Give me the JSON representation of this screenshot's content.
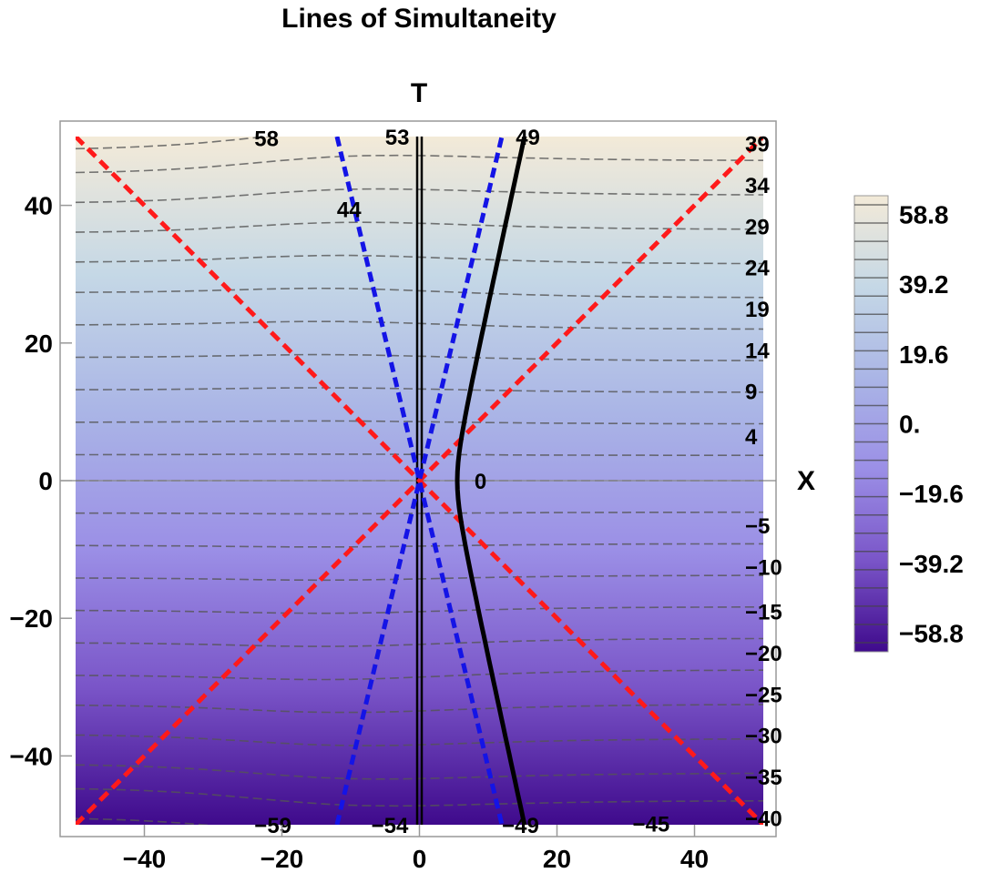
{
  "chart_data": {
    "type": "contour",
    "title": "Lines of Simultaneity",
    "xlabel": "X",
    "ylabel": "T",
    "xlim": [
      -50,
      50
    ],
    "ylim": [
      -50,
      50
    ],
    "x_ticks": [
      "−40",
      "−20",
      "0",
      "20",
      "40"
    ],
    "x_tick_values": [
      -40,
      -20,
      0,
      20,
      40
    ],
    "y_ticks": [
      "40",
      "20",
      "0",
      "−20",
      "−40"
    ],
    "y_tick_values": [
      40,
      20,
      0,
      -20,
      -40
    ],
    "grid": false,
    "colorscale": [
      "#3f0a8c",
      "#7a55c8",
      "#9b8fe6",
      "#aab5e6",
      "#c5d8e6",
      "#f3ead8"
    ],
    "colorbar": {
      "labels": [
        "58.8",
        "39.2",
        "19.6",
        "0.",
        "−19.6",
        "−39.2",
        "−58.8"
      ],
      "values": [
        58.8,
        39.2,
        19.6,
        0,
        -19.6,
        -39.2,
        -58.8
      ],
      "range": [
        -64,
        64
      ]
    },
    "contour_levels": [
      -59,
      -54,
      -49,
      -45,
      -40,
      -35,
      -30,
      -25,
      -20,
      -15,
      -10,
      -5,
      0,
      4,
      9,
      14,
      19,
      24,
      29,
      34,
      39,
      44,
      49,
      53,
      58
    ],
    "contour_labels": [
      {
        "text": "58",
        "x": -24,
        "y": 49.8
      },
      {
        "text": "53",
        "x": -5,
        "y": 50
      },
      {
        "text": "49",
        "x": 14,
        "y": 50
      },
      {
        "text": "44",
        "x": -12,
        "y": 39.5
      },
      {
        "text": "39",
        "x": 50,
        "y": 49
      },
      {
        "text": "34",
        "x": 50,
        "y": 43
      },
      {
        "text": "29",
        "x": 50,
        "y": 37
      },
      {
        "text": "24",
        "x": 50,
        "y": 31
      },
      {
        "text": "19",
        "x": 50,
        "y": 25
      },
      {
        "text": "14",
        "x": 50,
        "y": 19
      },
      {
        "text": "9",
        "x": 50,
        "y": 13
      },
      {
        "text": "4",
        "x": 50,
        "y": 6.5
      },
      {
        "text": "0",
        "x": 8,
        "y": 0
      },
      {
        "text": "−5",
        "x": 50,
        "y": -6.5
      },
      {
        "text": "−10",
        "x": 50,
        "y": -12.5
      },
      {
        "text": "−15",
        "x": 50,
        "y": -19
      },
      {
        "text": "−20",
        "x": 50,
        "y": -25
      },
      {
        "text": "−25",
        "x": 50,
        "y": -31
      },
      {
        "text": "−30",
        "x": 50,
        "y": -37
      },
      {
        "text": "−35",
        "x": 50,
        "y": -43
      },
      {
        "text": "−40",
        "x": 50,
        "y": -49
      },
      {
        "text": "−45",
        "x": 31,
        "y": -49.8
      },
      {
        "text": "−49",
        "x": 12,
        "y": -50
      },
      {
        "text": "−54",
        "x": -7,
        "y": -50
      },
      {
        "text": "−59",
        "x": -24,
        "y": -50
      }
    ],
    "light_cone": {
      "color": "#ff1a1a",
      "slope": 1
    },
    "worldline_lines": {
      "color": "#1414e6",
      "slope": 4.17
    },
    "hyperbola": {
      "color": "#000000",
      "a": 5.5,
      "b": 5.5
    }
  }
}
